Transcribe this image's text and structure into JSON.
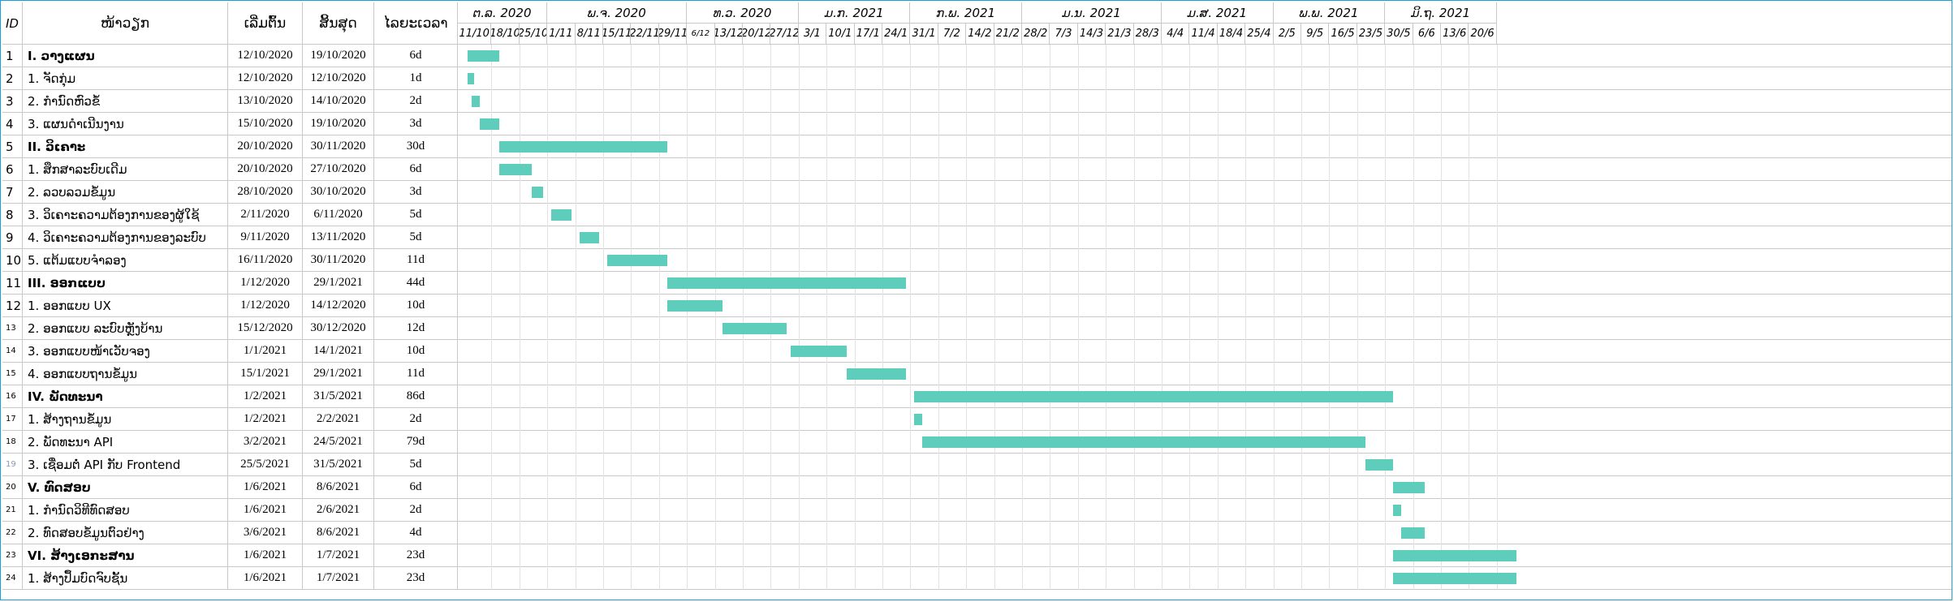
{
  "columns": {
    "id": "ID",
    "name": "ໜ້າວຽກ",
    "start": "ເລີ່ມຕົ້ນ",
    "end": "ສິ້ນສຸດ",
    "duration": "ໄລຍະເວລາ"
  },
  "months": [
    "ຕ.ລ. 2020",
    "ພ.ຈ. 2020",
    "ທ.ວ. 2020",
    "ມ.ກ. 2021",
    "ກ.ພ. 2021",
    "ມ.ນ. 2021",
    "ມ.ສ. 2021",
    "ພ.ພ. 2021",
    "ມິ.ຖ. 2021"
  ],
  "weeks": [
    "11/10",
    "18/10",
    "25/10",
    "1/11",
    "8/11",
    "15/11",
    "22/11",
    "29/11",
    "6/12",
    "13/12",
    "20/12",
    "27/12",
    "3/1",
    "10/1",
    "17/1",
    "24/1",
    "31/1",
    "7/2",
    "14/2",
    "21/2",
    "28/2",
    "7/3",
    "14/3",
    "21/3",
    "28/3",
    "4/4",
    "11/4",
    "18/4",
    "25/4",
    "2/5",
    "9/5",
    "16/5",
    "23/5",
    "30/5",
    "6/6",
    "13/6",
    "20/6"
  ],
  "bar_color": "#5fcdbc",
  "tasks": [
    {
      "id": "1",
      "name": "I. ວາງແຜນ",
      "start": "12/10/2020",
      "end": "19/10/2020",
      "duration": "6d",
      "bold": true
    },
    {
      "id": "2",
      "name": "1. ຈັດກຸ່ມ",
      "start": "12/10/2020",
      "end": "12/10/2020",
      "duration": "1d"
    },
    {
      "id": "3",
      "name": "2. ກຳນົດຫົວຂໍ້",
      "start": "13/10/2020",
      "end": "14/10/2020",
      "duration": "2d"
    },
    {
      "id": "4",
      "name": "3. ແຜນດຳເນີນງານ",
      "start": "15/10/2020",
      "end": "19/10/2020",
      "duration": "3d"
    },
    {
      "id": "5",
      "name": "II. ວິເຄາະ",
      "start": "20/10/2020",
      "end": "30/11/2020",
      "duration": "30d",
      "bold": true
    },
    {
      "id": "6",
      "name": "1. ສຶກສາລະບົບເດີມ",
      "start": "20/10/2020",
      "end": "27/10/2020",
      "duration": "6d"
    },
    {
      "id": "7",
      "name": "2. ລວບລວມຂໍ້ມູນ",
      "start": "28/10/2020",
      "end": "30/10/2020",
      "duration": "3d"
    },
    {
      "id": "8",
      "name": "3. ວິເຄາະຄວາມຕ້ອງການຂອງຜູ້ໃຊ້",
      "start": "2/11/2020",
      "end": "6/11/2020",
      "duration": "5d"
    },
    {
      "id": "9",
      "name": "4. ວິເຄາະຄວາມຕ້ອງການຂອງລະບົບ",
      "start": "9/11/2020",
      "end": "13/11/2020",
      "duration": "5d"
    },
    {
      "id": "10",
      "name": "5. ແຕ້ມແບບຈຳລອງ",
      "start": "16/11/2020",
      "end": "30/11/2020",
      "duration": "11d"
    },
    {
      "id": "11",
      "name": "III. ອອກແບບ",
      "start": "1/12/2020",
      "end": "29/1/2021",
      "duration": "44d",
      "bold": true
    },
    {
      "id": "12",
      "name": "1. ອອກແບບ UX",
      "start": "1/12/2020",
      "end": "14/12/2020",
      "duration": "10d"
    },
    {
      "id": "13",
      "name": "2. ອອກແບບ ລະບົບຫຼັງບ້ານ",
      "start": "15/12/2020",
      "end": "30/12/2020",
      "duration": "12d"
    },
    {
      "id": "14",
      "name": "3. ອອກແບບໜ້າເວັບຈອງ",
      "start": "1/1/2021",
      "end": "14/1/2021",
      "duration": "10d"
    },
    {
      "id": "15",
      "name": "4. ອອກແບບຖານຂໍ້ມູນ",
      "start": "15/1/2021",
      "end": "29/1/2021",
      "duration": "11d"
    },
    {
      "id": "16",
      "name": "IV. ພັດທະນາ",
      "start": "1/2/2021",
      "end": "31/5/2021",
      "duration": "86d",
      "bold": true
    },
    {
      "id": "17",
      "name": "1. ສ້າງຖານຂໍ້ມູນ",
      "start": "1/2/2021",
      "end": "2/2/2021",
      "duration": "2d"
    },
    {
      "id": "18",
      "name": "2. ພັດທະນາ API",
      "start": "3/2/2021",
      "end": "24/5/2021",
      "duration": "79d"
    },
    {
      "id": "19",
      "name": "3. ເຊື່ອມຕໍ່ API ກັບ Frontend",
      "start": "25/5/2021",
      "end": "31/5/2021",
      "duration": "5d"
    },
    {
      "id": "20",
      "name": "V. ທົດສອບ",
      "start": "1/6/2021",
      "end": "8/6/2021",
      "duration": "6d",
      "bold": true
    },
    {
      "id": "21",
      "name": "1. ກຳນົດວິທີທົດສອບ",
      "start": "1/6/2021",
      "end": "2/6/2021",
      "duration": "2d"
    },
    {
      "id": "22",
      "name": "2. ທົດສອບຂໍ້ມູນຕົວຢ່າງ",
      "start": "3/6/2021",
      "end": "8/6/2021",
      "duration": "4d"
    },
    {
      "id": "23",
      "name": "VI. ສ້າງເອກະສານ",
      "start": "1/6/2021",
      "end": "1/7/2021",
      "duration": "23d",
      "bold": true
    },
    {
      "id": "24",
      "name": "1. ສ້າງປຶ້ມບົດຈົບຊັ້ນ",
      "start": "1/6/2021",
      "end": "1/7/2021",
      "duration": "23d"
    }
  ]
}
